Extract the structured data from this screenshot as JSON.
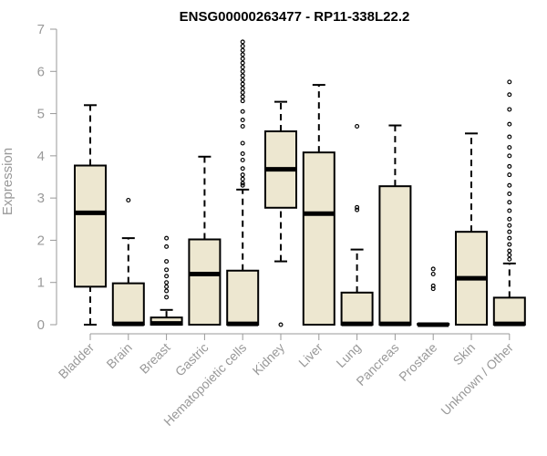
{
  "chart_data": {
    "type": "boxplot",
    "title": "ENSG00000263477 - RP11-338L22.2",
    "ylabel": "Expression",
    "xlabel": "",
    "ylim": [
      0,
      7
    ],
    "yticks": [
      0,
      1,
      2,
      3,
      4,
      5,
      6,
      7
    ],
    "grid": false,
    "legend": "none",
    "colors": {
      "box_fill": "#ede7d0",
      "box_stroke": "#000000",
      "axis": "#999999"
    },
    "categories": [
      "Bladder",
      "Brain",
      "Breast",
      "Gastric",
      "Hematopoietic cells",
      "Kidney",
      "Liver",
      "Lung",
      "Pancreas",
      "Prostate",
      "Skin",
      "Unknown / Other"
    ],
    "boxes": [
      {
        "category": "Bladder",
        "min": 0,
        "q1": 0.9,
        "median": 2.65,
        "q3": 3.77,
        "max": 5.2,
        "outliers": []
      },
      {
        "category": "Brain",
        "min": 0,
        "q1": 0,
        "median": 0.02,
        "q3": 0.98,
        "max": 2.05,
        "outliers": [
          2.95
        ]
      },
      {
        "category": "Breast",
        "min": 0,
        "q1": 0,
        "median": 0.03,
        "q3": 0.17,
        "max": 0.35,
        "outliers": [
          0.65,
          0.8,
          0.9,
          1.0,
          1.15,
          1.3,
          1.5,
          1.85,
          2.05
        ]
      },
      {
        "category": "Gastric",
        "min": 0,
        "q1": 0,
        "median": 1.2,
        "q3": 2.02,
        "max": 3.98,
        "outliers": []
      },
      {
        "category": "Hematopoietic cells",
        "min": 0,
        "q1": 0,
        "median": 0.02,
        "q3": 1.28,
        "max": 3.2,
        "outliers": [
          3.3,
          3.35,
          3.45,
          3.55,
          3.7,
          3.9,
          4.05,
          4.3,
          4.7,
          4.85,
          5.05,
          5.3,
          5.4,
          5.5,
          5.6,
          5.7,
          5.8,
          5.9,
          6.0,
          6.1,
          6.2,
          6.3,
          6.4,
          6.5,
          6.6,
          6.7
        ]
      },
      {
        "category": "Kidney",
        "min": 1.5,
        "q1": 2.77,
        "median": 3.68,
        "q3": 4.58,
        "max": 5.28,
        "outliers": [
          0
        ]
      },
      {
        "category": "Liver",
        "min": 0,
        "q1": 0,
        "median": 2.63,
        "q3": 4.08,
        "max": 5.68,
        "outliers": []
      },
      {
        "category": "Lung",
        "min": 0,
        "q1": 0,
        "median": 0.02,
        "q3": 0.76,
        "max": 1.78,
        "outliers": [
          2.72,
          2.78,
          4.7
        ]
      },
      {
        "category": "Pancreas",
        "min": 0,
        "q1": 0,
        "median": 0.02,
        "q3": 3.28,
        "max": 4.72,
        "outliers": []
      },
      {
        "category": "Prostate",
        "min": 0,
        "q1": 0,
        "median": 0,
        "q3": 0.02,
        "max": 0.03,
        "outliers": [
          0.85,
          0.92,
          1.2,
          1.32
        ]
      },
      {
        "category": "Skin",
        "min": 0,
        "q1": 0,
        "median": 1.1,
        "q3": 2.2,
        "max": 4.53,
        "outliers": []
      },
      {
        "category": "Unknown / Other",
        "min": 0,
        "q1": 0,
        "median": 0.02,
        "q3": 0.64,
        "max": 1.45,
        "outliers": [
          1.55,
          1.65,
          1.75,
          1.9,
          2.05,
          2.2,
          2.35,
          2.5,
          2.7,
          2.9,
          3.1,
          3.3,
          3.55,
          3.75,
          4.0,
          4.2,
          4.45,
          4.75,
          5.1,
          5.45,
          5.75
        ]
      }
    ]
  }
}
